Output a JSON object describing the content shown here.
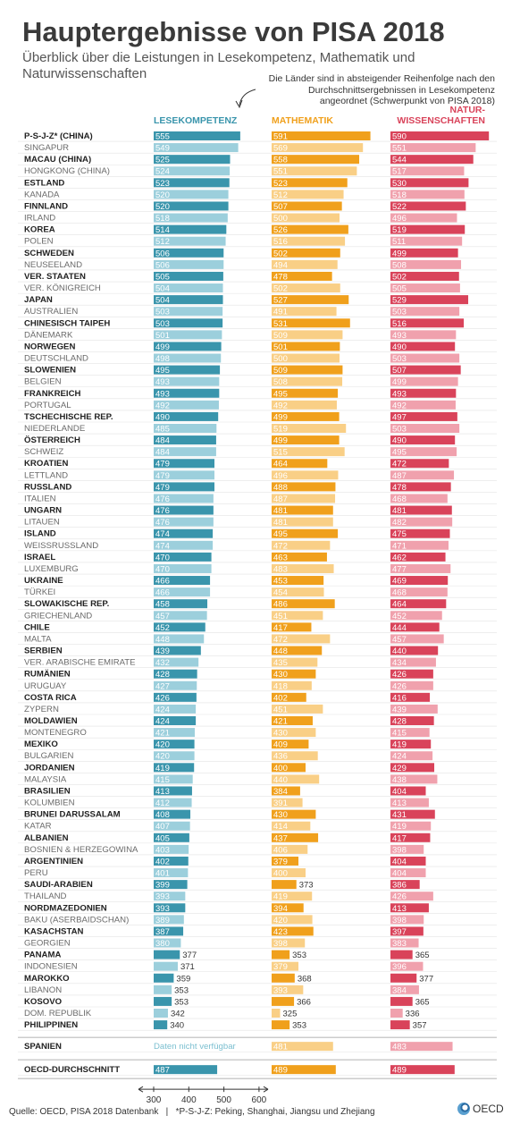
{
  "header": {
    "title": "Hauptergebnisse von PISA 2018",
    "subtitle": "Überblick über die Leistungen in Lesekompetenz, Mathematik und Naturwissenschaften",
    "note": "Die Länder sind in absteigender Reihenfolge nach den Durchschnittsergebnissen in Lesekompetenz angeordnet (Schwerpunkt von PISA 2018)"
  },
  "columns": [
    {
      "label": "LESEKOMPETENZ",
      "color": "#3a95ac",
      "light": "#9ccfdc"
    },
    {
      "label": "MATHEMATIK",
      "color": "#f0a01c",
      "light": "#f9cf86"
    },
    {
      "label": "NATUR-\nWISSENSCHAFTEN",
      "color": "#d9435a",
      "light": "#f0a1ad"
    }
  ],
  "chart_data": {
    "type": "bar",
    "x_axis_ticks": [
      300,
      400,
      500,
      600
    ],
    "axis_min": 300,
    "axis_max": 600,
    "series_names": [
      "Lesekompetenz",
      "Mathematik",
      "Naturwissenschaften"
    ],
    "rows": [
      {
        "name": "P-S-J-Z* (CHINA)",
        "values": [
          555,
          591,
          590
        ],
        "sig": [
          1,
          1,
          1
        ]
      },
      {
        "name": "SINGAPUR",
        "values": [
          549,
          569,
          551
        ],
        "sig": [
          1,
          1,
          1
        ]
      },
      {
        "name": "MACAU (CHINA)",
        "values": [
          525,
          558,
          544
        ],
        "sig": [
          1,
          1,
          1
        ]
      },
      {
        "name": "HONGKONG (CHINA)",
        "values": [
          524,
          551,
          517
        ],
        "sig": [
          1,
          1,
          1
        ]
      },
      {
        "name": "ESTLAND",
        "values": [
          523,
          523,
          530
        ],
        "sig": [
          1,
          1,
          1
        ]
      },
      {
        "name": "KANADA",
        "values": [
          520,
          512,
          518
        ],
        "sig": [
          1,
          1,
          1
        ]
      },
      {
        "name": "FINNLAND",
        "values": [
          520,
          507,
          522
        ],
        "sig": [
          1,
          1,
          1
        ]
      },
      {
        "name": "IRLAND",
        "values": [
          518,
          500,
          496
        ],
        "sig": [
          1,
          1,
          1
        ]
      },
      {
        "name": "KOREA",
        "values": [
          514,
          526,
          519
        ],
        "sig": [
          1,
          1,
          1
        ]
      },
      {
        "name": "POLEN",
        "values": [
          512,
          516,
          511
        ],
        "sig": [
          1,
          1,
          1
        ]
      },
      {
        "name": "SCHWEDEN",
        "values": [
          506,
          502,
          499
        ],
        "sig": [
          1,
          1,
          1
        ]
      },
      {
        "name": "NEUSEELAND",
        "values": [
          506,
          494,
          508
        ],
        "sig": [
          1,
          1,
          1
        ]
      },
      {
        "name": "VER. STAATEN",
        "values": [
          505,
          478,
          502
        ],
        "sig": [
          1,
          1,
          1
        ]
      },
      {
        "name": "VER. KÖNIGREICH",
        "values": [
          504,
          502,
          505
        ],
        "sig": [
          1,
          1,
          1
        ]
      },
      {
        "name": "JAPAN",
        "values": [
          504,
          527,
          529
        ],
        "sig": [
          1,
          1,
          1
        ]
      },
      {
        "name": "AUSTRALIEN",
        "values": [
          503,
          491,
          503
        ],
        "sig": [
          1,
          1,
          1
        ]
      },
      {
        "name": "CHINESISCH TAIPEH",
        "values": [
          503,
          531,
          516
        ],
        "sig": [
          1,
          1,
          1
        ]
      },
      {
        "name": "DÄNEMARK",
        "values": [
          501,
          509,
          493
        ],
        "sig": [
          1,
          1,
          1
        ]
      },
      {
        "name": "NORWEGEN",
        "values": [
          499,
          501,
          490
        ],
        "sig": [
          1,
          1,
          1
        ]
      },
      {
        "name": "DEUTSCHLAND",
        "values": [
          498,
          500,
          503
        ],
        "sig": [
          1,
          1,
          1
        ]
      },
      {
        "name": "SLOWENIEN",
        "values": [
          495,
          509,
          507
        ],
        "sig": [
          1,
          1,
          1
        ]
      },
      {
        "name": "BELGIEN",
        "values": [
          493,
          508,
          499
        ],
        "sig": [
          1,
          1,
          1
        ]
      },
      {
        "name": "FRANKREICH",
        "values": [
          493,
          495,
          493
        ],
        "sig": [
          1,
          1,
          1
        ]
      },
      {
        "name": "PORTUGAL",
        "values": [
          492,
          492,
          492
        ],
        "sig": [
          1,
          1,
          1
        ]
      },
      {
        "name": "TSCHECHISCHE REP.",
        "values": [
          490,
          499,
          497
        ],
        "sig": [
          1,
          1,
          1
        ]
      },
      {
        "name": "NIEDERLANDE",
        "values": [
          485,
          519,
          503
        ],
        "sig": [
          1,
          1,
          1
        ]
      },
      {
        "name": "ÖSTERREICH",
        "values": [
          484,
          499,
          490
        ],
        "sig": [
          1,
          1,
          1
        ]
      },
      {
        "name": "SCHWEIZ",
        "values": [
          484,
          515,
          495
        ],
        "sig": [
          1,
          1,
          1
        ]
      },
      {
        "name": "KROATIEN",
        "values": [
          479,
          464,
          472
        ],
        "sig": [
          1,
          1,
          1
        ]
      },
      {
        "name": "LETTLAND",
        "values": [
          479,
          496,
          487
        ],
        "sig": [
          1,
          1,
          1
        ]
      },
      {
        "name": "RUSSLAND",
        "values": [
          479,
          488,
          478
        ],
        "sig": [
          1,
          1,
          1
        ]
      },
      {
        "name": "ITALIEN",
        "values": [
          476,
          487,
          468
        ],
        "sig": [
          1,
          1,
          1
        ]
      },
      {
        "name": "UNGARN",
        "values": [
          476,
          481,
          481
        ],
        "sig": [
          1,
          1,
          1
        ]
      },
      {
        "name": "LITAUEN",
        "values": [
          476,
          481,
          482
        ],
        "sig": [
          1,
          1,
          1
        ]
      },
      {
        "name": "ISLAND",
        "values": [
          474,
          495,
          475
        ],
        "sig": [
          1,
          1,
          1
        ]
      },
      {
        "name": "WEISSRUSSLAND",
        "values": [
          474,
          472,
          471
        ],
        "sig": [
          1,
          1,
          1
        ]
      },
      {
        "name": "ISRAEL",
        "values": [
          470,
          463,
          462
        ],
        "sig": [
          1,
          1,
          1
        ]
      },
      {
        "name": "LUXEMBURG",
        "values": [
          470,
          483,
          477
        ],
        "sig": [
          1,
          1,
          1
        ]
      },
      {
        "name": "UKRAINE",
        "values": [
          466,
          453,
          469
        ],
        "sig": [
          1,
          1,
          1
        ]
      },
      {
        "name": "TÜRKEI",
        "values": [
          466,
          454,
          468
        ],
        "sig": [
          1,
          1,
          1
        ]
      },
      {
        "name": "SLOWAKISCHE REP.",
        "values": [
          458,
          486,
          464
        ],
        "sig": [
          1,
          1,
          1
        ]
      },
      {
        "name": "GRIECHENLAND",
        "values": [
          457,
          451,
          452
        ],
        "sig": [
          1,
          1,
          1
        ]
      },
      {
        "name": "CHILE",
        "values": [
          452,
          417,
          444
        ],
        "sig": [
          1,
          1,
          1
        ]
      },
      {
        "name": "MALTA",
        "values": [
          448,
          472,
          457
        ],
        "sig": [
          1,
          1,
          1
        ]
      },
      {
        "name": "SERBIEN",
        "values": [
          439,
          448,
          440
        ],
        "sig": [
          1,
          1,
          1
        ]
      },
      {
        "name": "VER. ARABISCHE EMIRATE",
        "values": [
          432,
          435,
          434
        ],
        "sig": [
          1,
          1,
          1
        ]
      },
      {
        "name": "RUMÄNIEN",
        "values": [
          428,
          430,
          426
        ],
        "sig": [
          1,
          1,
          1
        ]
      },
      {
        "name": "URUGUAY",
        "values": [
          427,
          418,
          426
        ],
        "sig": [
          1,
          1,
          1
        ]
      },
      {
        "name": "COSTA RICA",
        "values": [
          426,
          402,
          416
        ],
        "sig": [
          1,
          1,
          1
        ]
      },
      {
        "name": "ZYPERN",
        "values": [
          424,
          451,
          439
        ],
        "sig": [
          1,
          1,
          1
        ]
      },
      {
        "name": "MOLDAWIEN",
        "values": [
          424,
          421,
          428
        ],
        "sig": [
          1,
          1,
          1
        ]
      },
      {
        "name": "MONTENEGRO",
        "values": [
          421,
          430,
          415
        ],
        "sig": [
          1,
          1,
          1
        ]
      },
      {
        "name": "MEXIKO",
        "values": [
          420,
          409,
          419
        ],
        "sig": [
          1,
          1,
          1
        ]
      },
      {
        "name": "BULGARIEN",
        "values": [
          420,
          436,
          424
        ],
        "sig": [
          1,
          1,
          1
        ]
      },
      {
        "name": "JORDANIEN",
        "values": [
          419,
          400,
          429
        ],
        "sig": [
          1,
          1,
          1
        ]
      },
      {
        "name": "MALAYSIA",
        "values": [
          415,
          440,
          438
        ],
        "sig": [
          1,
          1,
          1
        ]
      },
      {
        "name": "BRASILIEN",
        "values": [
          413,
          384,
          404
        ],
        "sig": [
          1,
          1,
          1
        ]
      },
      {
        "name": "KOLUMBIEN",
        "values": [
          412,
          391,
          413
        ],
        "sig": [
          1,
          1,
          1
        ]
      },
      {
        "name": "BRUNEI DARUSSALAM",
        "values": [
          408,
          430,
          431
        ],
        "sig": [
          1,
          1,
          1
        ]
      },
      {
        "name": "KATAR",
        "values": [
          407,
          414,
          419
        ],
        "sig": [
          1,
          1,
          1
        ]
      },
      {
        "name": "ALBANIEN",
        "values": [
          405,
          437,
          417
        ],
        "sig": [
          1,
          1,
          1
        ]
      },
      {
        "name": "BOSNIEN & HERZEGOWINA",
        "values": [
          403,
          406,
          398
        ],
        "sig": [
          1,
          1,
          1
        ]
      },
      {
        "name": "ARGENTINIEN",
        "values": [
          402,
          379,
          404
        ],
        "sig": [
          1,
          1,
          1
        ]
      },
      {
        "name": "PERU",
        "values": [
          401,
          400,
          404
        ],
        "sig": [
          1,
          1,
          1
        ]
      },
      {
        "name": "SAUDI-ARABIEN",
        "values": [
          399,
          373,
          386
        ],
        "sig": [
          1,
          1,
          1
        ]
      },
      {
        "name": "THAILAND",
        "values": [
          393,
          419,
          426
        ],
        "sig": [
          1,
          1,
          1
        ]
      },
      {
        "name": "NORDMAZEDONIEN",
        "values": [
          393,
          394,
          413
        ],
        "sig": [
          1,
          1,
          1
        ]
      },
      {
        "name": "BAKU (ASERBAIDSCHAN)",
        "values": [
          389,
          420,
          398
        ],
        "sig": [
          1,
          1,
          1
        ]
      },
      {
        "name": "KASACHSTAN",
        "values": [
          387,
          423,
          397
        ],
        "sig": [
          1,
          1,
          1
        ]
      },
      {
        "name": "GEORGIEN",
        "values": [
          380,
          398,
          383
        ],
        "sig": [
          1,
          1,
          1
        ]
      },
      {
        "name": "PANAMA",
        "values": [
          377,
          353,
          365
        ],
        "sig": [
          1,
          1,
          1
        ]
      },
      {
        "name": "INDONESIEN",
        "values": [
          371,
          379,
          396
        ],
        "sig": [
          1,
          1,
          1
        ]
      },
      {
        "name": "MAROKKO",
        "values": [
          359,
          368,
          377
        ],
        "sig": [
          1,
          1,
          1
        ]
      },
      {
        "name": "LIBANON",
        "values": [
          353,
          393,
          384
        ],
        "sig": [
          1,
          1,
          1
        ]
      },
      {
        "name": "KOSOVO",
        "values": [
          353,
          366,
          365
        ],
        "sig": [
          1,
          1,
          1
        ]
      },
      {
        "name": "DOM. REPUBLIK",
        "values": [
          342,
          325,
          336
        ],
        "sig": [
          1,
          1,
          1
        ]
      },
      {
        "name": "PHILIPPINEN",
        "values": [
          340,
          353,
          357
        ],
        "sig": [
          1,
          1,
          1
        ]
      }
    ],
    "extra_rows": [
      {
        "name": "SPANIEN",
        "values": [
          null,
          481,
          483
        ],
        "missing_text": "Daten nicht verfügbar"
      },
      {
        "name": "OECD-DURCHSCHNITT",
        "values": [
          487,
          489,
          489
        ]
      }
    ]
  },
  "footer": {
    "source": "Quelle: OECD, PISA 2018 Datenbank",
    "footnote": "*P-S-J-Z: Peking, Shanghai, Jiangsu und Zhejiang"
  },
  "logo": {
    "text": "OECD"
  }
}
